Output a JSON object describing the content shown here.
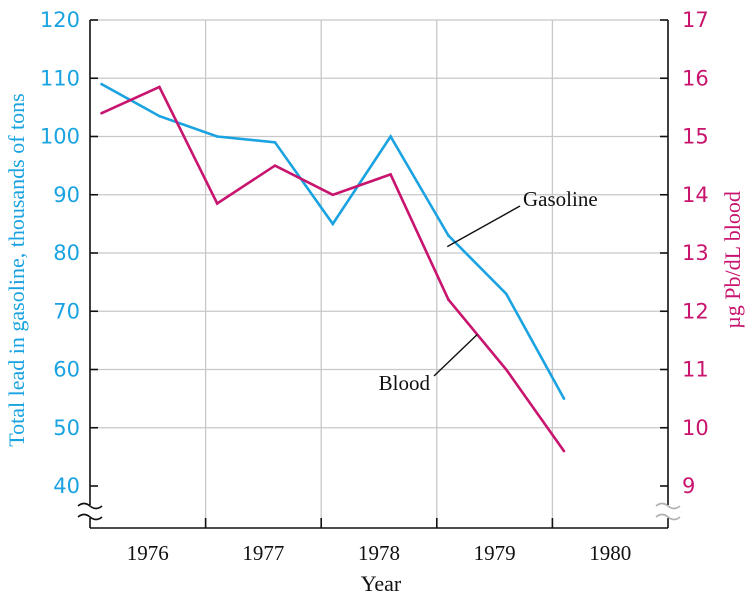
{
  "chart_data": {
    "type": "line",
    "title": "",
    "xlabel": "Year",
    "ylabel_left": "Total lead in gasoline, thousands of tons",
    "ylabel_right": "µg Pb/dL blood",
    "x_ticks": [
      "1976",
      "1977",
      "1978",
      "1979",
      "1980"
    ],
    "y_left_ticks": [
      40,
      50,
      60,
      70,
      80,
      90,
      100,
      110,
      120
    ],
    "y_right_ticks": [
      9,
      10,
      11,
      12,
      13,
      14,
      15,
      16,
      17
    ],
    "xlim": [
      1975.5,
      1980.5
    ],
    "ylim_left": [
      40,
      120
    ],
    "ylim_right": [
      9,
      17
    ],
    "grid": true,
    "axis_breaks": true,
    "colors": {
      "gasoline": "#1aa3e0",
      "blood": "#c8146e",
      "grid": "#c8c8c8",
      "axis": "#111111"
    },
    "series": [
      {
        "name": "Gasoline",
        "axis": "left",
        "x": [
          1975.6,
          1976.1,
          1976.6,
          1977.1,
          1977.6,
          1978.1,
          1978.6,
          1979.1,
          1979.6
        ],
        "y": [
          109,
          103.5,
          100,
          99,
          85,
          100,
          83,
          73,
          55
        ]
      },
      {
        "name": "Blood",
        "axis": "right",
        "x": [
          1975.6,
          1976.1,
          1976.6,
          1977.1,
          1977.6,
          1978.1,
          1978.6,
          1979.1,
          1979.6
        ],
        "y": [
          15.4,
          15.85,
          13.85,
          14.5,
          14.0,
          14.35,
          12.2,
          11.0,
          9.6
        ]
      }
    ],
    "annotations": [
      {
        "text": "Gasoline",
        "series": "Gasoline"
      },
      {
        "text": "Blood",
        "series": "Blood"
      }
    ]
  }
}
